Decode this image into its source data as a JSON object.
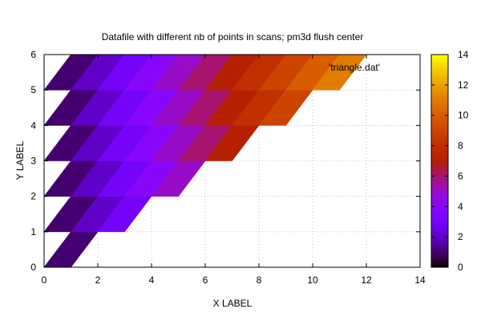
{
  "chart_data": {
    "type": "heatmap",
    "title": "Datafile with different nb of points in scans; pm3d flush center",
    "xlabel": "X LABEL",
    "ylabel": "Y LABEL",
    "xlim": [
      0,
      14
    ],
    "ylim": [
      0,
      6
    ],
    "x_ticks": [
      "0",
      "2",
      "4",
      "6",
      "8",
      "10",
      "12",
      "14"
    ],
    "y_ticks": [
      "0",
      "1",
      "2",
      "3",
      "4",
      "5",
      "6"
    ],
    "grid": true,
    "legend_position": "top-right",
    "series": [
      {
        "name": "'triangle.dat'"
      }
    ],
    "scans": [
      {
        "y": 0,
        "x": [
          0,
          1
        ]
      },
      {
        "y": 1,
        "x": [
          0,
          1,
          2,
          3
        ]
      },
      {
        "y": 2,
        "x": [
          0,
          1,
          2,
          3,
          4,
          5
        ]
      },
      {
        "y": 3,
        "x": [
          0,
          1,
          2,
          3,
          4,
          5,
          6,
          7
        ]
      },
      {
        "y": 4,
        "x": [
          0,
          1,
          2,
          3,
          4,
          5,
          6,
          7,
          8,
          9
        ]
      },
      {
        "y": 5,
        "x": [
          0,
          1,
          2,
          3,
          4,
          5,
          6,
          7,
          8,
          9,
          10,
          11
        ]
      },
      {
        "y": 6,
        "x": [
          1,
          2,
          3,
          4,
          5,
          6,
          7,
          8,
          9,
          10,
          11,
          12
        ]
      }
    ],
    "z_rule": "z = x",
    "colorbar": {
      "range": [
        0,
        14
      ],
      "ticks": [
        "0",
        "2",
        "4",
        "6",
        "8",
        "10",
        "12",
        "14"
      ],
      "palette": "black-blue-magenta-red-orange-yellow"
    }
  }
}
